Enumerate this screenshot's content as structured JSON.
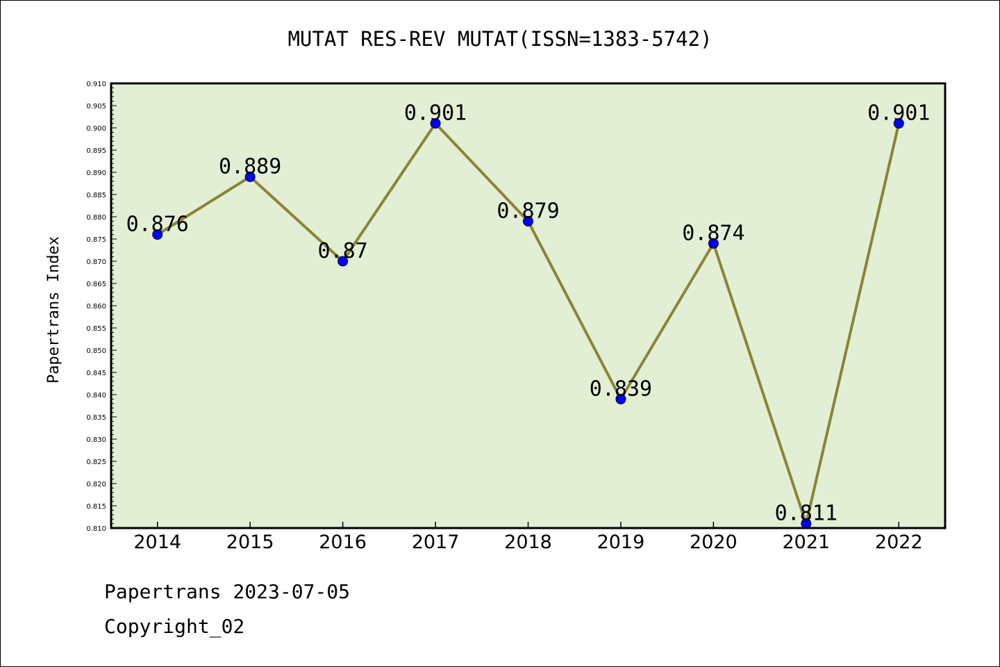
{
  "chart_data": {
    "type": "line",
    "title": "MUTAT RES-REV MUTAT(ISSN=1383-5742)",
    "ylabel": "Papertrans Index",
    "xlabel": "",
    "categories": [
      "2014",
      "2015",
      "2016",
      "2017",
      "2018",
      "2019",
      "2020",
      "2021",
      "2022"
    ],
    "values": [
      0.876,
      0.889,
      0.87,
      0.901,
      0.879,
      0.839,
      0.874,
      0.811,
      0.901
    ],
    "value_labels": [
      "0.876",
      "0.889",
      "0.87",
      "0.901",
      "0.879",
      "0.839",
      "0.874",
      "0.811",
      "0.901"
    ],
    "ylim": [
      0.81,
      0.91
    ],
    "yticks": [
      "0.810",
      "0.815",
      "0.820",
      "0.825",
      "0.830",
      "0.835",
      "0.840",
      "0.845",
      "0.850",
      "0.855",
      "0.860",
      "0.865",
      "0.870",
      "0.875",
      "0.880",
      "0.885",
      "0.890",
      "0.895",
      "0.900",
      "0.905",
      "0.910"
    ],
    "grid": false,
    "colors": {
      "plot_bg": "#e2efd5",
      "line": "#8b8435",
      "marker": "#0000ff"
    }
  },
  "footer": {
    "line1": "Papertrans 2023-07-05",
    "line2": "Copyright_02"
  }
}
